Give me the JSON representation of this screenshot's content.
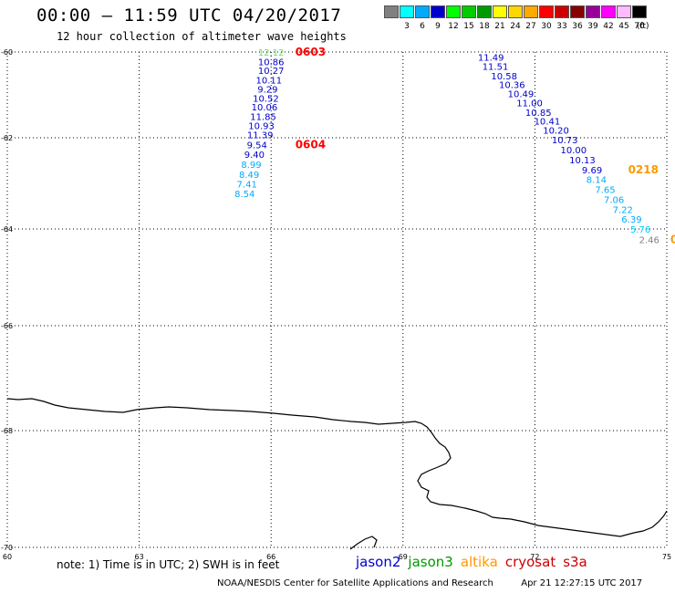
{
  "header": {
    "title": "00:00 – 11:59 UTC 04/20/2017",
    "subtitle": "12 hour collection of altimeter wave heights"
  },
  "legend": {
    "unit": "(ft)",
    "bins": [
      {
        "label": "",
        "color": "#808080"
      },
      {
        "label": "3",
        "color": "#00ffff"
      },
      {
        "label": "6",
        "color": "#00aaff"
      },
      {
        "label": "9",
        "color": "#0000cc"
      },
      {
        "label": "12",
        "color": "#00ff00"
      },
      {
        "label": "15",
        "color": "#00cc00"
      },
      {
        "label": "18",
        "color": "#009900"
      },
      {
        "label": "21",
        "color": "#ffff00"
      },
      {
        "label": "24",
        "color": "#ffd700"
      },
      {
        "label": "27",
        "color": "#ffaa00"
      },
      {
        "label": "30",
        "color": "#ff0000"
      },
      {
        "label": "33",
        "color": "#cc0000"
      },
      {
        "label": "36",
        "color": "#880000"
      },
      {
        "label": "39",
        "color": "#990099"
      },
      {
        "label": "42",
        "color": "#ff00ff"
      },
      {
        "label": "45",
        "color": "#ffbbff"
      },
      {
        "label": "70",
        "color": "#000000"
      }
    ]
  },
  "axes": {
    "lat_labels": [
      {
        "lat": -60,
        "label": "-60"
      },
      {
        "lat": -62,
        "label": "-62"
      },
      {
        "lat": -64,
        "label": "-64"
      },
      {
        "lat": -66,
        "label": "-66"
      },
      {
        "lat": -68,
        "label": "-68"
      },
      {
        "lat": -70,
        "label": "-70"
      }
    ],
    "lon_labels": [
      {
        "lon": 60,
        "label": "60"
      },
      {
        "lon": 63,
        "label": "63"
      },
      {
        "lon": 66,
        "label": "66"
      },
      {
        "lon": 69,
        "label": "69"
      },
      {
        "lon": 72,
        "label": "72"
      },
      {
        "lon": 75,
        "label": "75"
      }
    ]
  },
  "tracks": [
    {
      "satellite": "jason2",
      "points": [
        {
          "lon": 66.0,
          "lat": -60.0,
          "swh": "12.12",
          "color": "#66dd66"
        },
        {
          "lon": 66.0,
          "lat": -60.22,
          "swh": "10.86",
          "color": "#0000cc"
        },
        {
          "lon": 66.0,
          "lat": -60.43,
          "swh": "10.27",
          "color": "#0000cc"
        },
        {
          "lon": 65.95,
          "lat": -60.65,
          "swh": "10.11",
          "color": "#0000cc"
        },
        {
          "lon": 65.92,
          "lat": -60.86,
          "swh": "9.29",
          "color": "#0000cc"
        },
        {
          "lon": 65.88,
          "lat": -61.07,
          "swh": "10.52",
          "color": "#0000cc"
        },
        {
          "lon": 65.85,
          "lat": -61.28,
          "swh": "10.06",
          "color": "#0000cc"
        },
        {
          "lon": 65.82,
          "lat": -61.5,
          "swh": "11.85",
          "color": "#0000cc"
        },
        {
          "lon": 65.78,
          "lat": -61.71,
          "swh": "10.93",
          "color": "#0000cc"
        },
        {
          "lon": 65.75,
          "lat": -61.93,
          "swh": "11.39",
          "color": "#0000cc"
        },
        {
          "lon": 65.68,
          "lat": -62.15,
          "swh": "9.54",
          "color": "#0000cc"
        },
        {
          "lon": 65.62,
          "lat": -62.36,
          "swh": "9.40",
          "color": "#0000cc"
        },
        {
          "lon": 65.55,
          "lat": -62.58,
          "swh": "8.99",
          "color": "#00aaff"
        },
        {
          "lon": 65.5,
          "lat": -62.8,
          "swh": "8.49",
          "color": "#00aaff"
        },
        {
          "lon": 65.45,
          "lat": -63.01,
          "swh": "7.41",
          "color": "#00aaff"
        },
        {
          "lon": 65.4,
          "lat": -63.22,
          "swh": "8.54",
          "color": "#00aaff"
        }
      ],
      "times": [
        {
          "lon": 66.55,
          "lat": -60.0,
          "label": "0603",
          "color": "#ff0000"
        },
        {
          "lon": 66.55,
          "lat": -62.15,
          "label": "0604",
          "color": "#ff0000"
        }
      ]
    },
    {
      "satellite": "altika",
      "points": [
        {
          "lon": 71.0,
          "lat": -60.12,
          "swh": "11.49",
          "color": "#0000cc"
        },
        {
          "lon": 71.1,
          "lat": -60.33,
          "swh": "11.51",
          "color": "#0000cc"
        },
        {
          "lon": 71.3,
          "lat": -60.55,
          "swh": "10.58",
          "color": "#0000cc"
        },
        {
          "lon": 71.48,
          "lat": -60.76,
          "swh": "10.36",
          "color": "#0000cc"
        },
        {
          "lon": 71.68,
          "lat": -60.97,
          "swh": "10.49",
          "color": "#0000cc"
        },
        {
          "lon": 71.88,
          "lat": -61.18,
          "swh": "11.00",
          "color": "#0000cc"
        },
        {
          "lon": 72.08,
          "lat": -61.4,
          "swh": "10.85",
          "color": "#0000cc"
        },
        {
          "lon": 72.28,
          "lat": -61.61,
          "swh": "10.41",
          "color": "#0000cc"
        },
        {
          "lon": 72.48,
          "lat": -61.82,
          "swh": "10.20",
          "color": "#0000cc"
        },
        {
          "lon": 72.68,
          "lat": -62.04,
          "swh": "10.73",
          "color": "#0000cc"
        },
        {
          "lon": 72.88,
          "lat": -62.26,
          "swh": "10.00",
          "color": "#0000cc"
        },
        {
          "lon": 73.08,
          "lat": -62.48,
          "swh": "10.13",
          "color": "#0000cc"
        },
        {
          "lon": 73.3,
          "lat": -62.7,
          "swh": "9.69",
          "color": "#0000cc"
        },
        {
          "lon": 73.4,
          "lat": -62.91,
          "swh": "8.14",
          "color": "#00aaff"
        },
        {
          "lon": 73.6,
          "lat": -63.13,
          "swh": "7.65",
          "color": "#00aaff"
        },
        {
          "lon": 73.8,
          "lat": -63.35,
          "swh": "7.06",
          "color": "#00aaff"
        },
        {
          "lon": 74.0,
          "lat": -63.57,
          "swh": "7.22",
          "color": "#00aaff"
        },
        {
          "lon": 74.2,
          "lat": -63.78,
          "swh": "6.39",
          "color": "#00aaff"
        },
        {
          "lon": 74.4,
          "lat": -64.0,
          "swh": "5.76",
          "color": "#00ccff"
        },
        {
          "lon": 74.6,
          "lat": -64.22,
          "swh": "2.46",
          "color": "#808080"
        }
      ],
      "times": [
        {
          "lon": 74.12,
          "lat": -62.7,
          "label": "0218",
          "color": "#ff9900"
        },
        {
          "lon": 75.08,
          "lat": -64.22,
          "label": "0",
          "color": "#ff9900"
        }
      ]
    }
  ],
  "footer": {
    "note": "note: 1) Time is in UTC; 2) SWH is in feet",
    "satellites": [
      {
        "name": "jason2",
        "color": "#0000cc"
      },
      {
        "name": "jason3",
        "color": "#009900"
      },
      {
        "name": "altika",
        "color": "#ff9900"
      },
      {
        "name": "cryosat",
        "color": "#cc0000"
      },
      {
        "name": "s3a",
        "color": "#cc0000"
      }
    ],
    "credit": "NOAA/NESDIS Center for Satellite Applications and Research",
    "timestamp": "Apr 21 12:27:15 UTC 2017"
  }
}
